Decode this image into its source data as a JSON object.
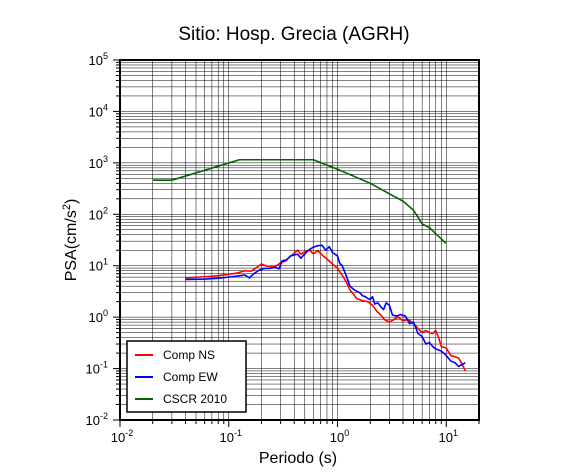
{
  "chart_data": {
    "type": "line",
    "title": "Sitio: Hosp. Grecia (AGRH)",
    "xlabel": "Periodo (s)",
    "ylabel": {
      "prefix": "PSA(cm/s",
      "sup": "2",
      "suffix": ")"
    },
    "xscale": "log",
    "yscale": "log",
    "xlim": [
      0.01,
      20
    ],
    "ylim": [
      0.01,
      100000
    ],
    "grid": true,
    "legend_position": "bottom-left",
    "x_ticks": [
      {
        "value": 0.01,
        "base": "10",
        "exp": "-2"
      },
      {
        "value": 0.1,
        "base": "10",
        "exp": "-1"
      },
      {
        "value": 1,
        "base": "10",
        "exp": "0"
      },
      {
        "value": 10,
        "base": "10",
        "exp": "1"
      }
    ],
    "y_ticks": [
      {
        "value": 0.01,
        "base": "10",
        "exp": "-2"
      },
      {
        "value": 0.1,
        "base": "10",
        "exp": "-1"
      },
      {
        "value": 1,
        "base": "10",
        "exp": "0"
      },
      {
        "value": 10,
        "base": "10",
        "exp": "1"
      },
      {
        "value": 100,
        "base": "10",
        "exp": "2"
      },
      {
        "value": 1000,
        "base": "10",
        "exp": "3"
      },
      {
        "value": 10000,
        "base": "10",
        "exp": "4"
      },
      {
        "value": 100000,
        "base": "10",
        "exp": "5"
      }
    ],
    "series": [
      {
        "name": "Comp NS",
        "color": "#ff0000",
        "points": [
          [
            0.04,
            5.8
          ],
          [
            0.06,
            6.1
          ],
          [
            0.08,
            6.4
          ],
          [
            0.1,
            6.8
          ],
          [
            0.12,
            7.2
          ],
          [
            0.14,
            8.0
          ],
          [
            0.16,
            7.8
          ],
          [
            0.18,
            9.2
          ],
          [
            0.2,
            10.8
          ],
          [
            0.22,
            9.9
          ],
          [
            0.25,
            9.6
          ],
          [
            0.28,
            10.2
          ],
          [
            0.3,
            11.5
          ],
          [
            0.33,
            12.2
          ],
          [
            0.36,
            14.5
          ],
          [
            0.4,
            17.5
          ],
          [
            0.43,
            20.0
          ],
          [
            0.46,
            16.8
          ],
          [
            0.5,
            18.5
          ],
          [
            0.55,
            20.2
          ],
          [
            0.6,
            17.0
          ],
          [
            0.66,
            19.6
          ],
          [
            0.72,
            16.2
          ],
          [
            0.8,
            13.5
          ],
          [
            0.9,
            10.8
          ],
          [
            1.0,
            8.9
          ],
          [
            1.1,
            6.6
          ],
          [
            1.2,
            4.9
          ],
          [
            1.3,
            3.4
          ],
          [
            1.4,
            2.8
          ],
          [
            1.5,
            2.3
          ],
          [
            1.7,
            2.1
          ],
          [
            1.9,
            2.0
          ],
          [
            2.1,
            1.7
          ],
          [
            2.3,
            1.3
          ],
          [
            2.5,
            1.1
          ],
          [
            2.7,
            0.9
          ],
          [
            3.0,
            0.8
          ],
          [
            3.3,
            0.9
          ],
          [
            3.6,
            1.0
          ],
          [
            4.0,
            0.85
          ],
          [
            4.5,
            0.9
          ],
          [
            5.0,
            0.75
          ],
          [
            5.5,
            0.6
          ],
          [
            6.0,
            0.5
          ],
          [
            6.5,
            0.55
          ],
          [
            7.0,
            0.5
          ],
          [
            7.5,
            0.48
          ],
          [
            8.0,
            0.55
          ],
          [
            8.5,
            0.4
          ],
          [
            9.0,
            0.27
          ],
          [
            10.0,
            0.25
          ],
          [
            11.0,
            0.18
          ],
          [
            12.0,
            0.17
          ],
          [
            13.0,
            0.16
          ],
          [
            14.0,
            0.12
          ],
          [
            15.0,
            0.09
          ]
        ]
      },
      {
        "name": "Comp EW",
        "color": "#0000ff",
        "points": [
          [
            0.04,
            5.4
          ],
          [
            0.06,
            5.5
          ],
          [
            0.08,
            5.7
          ],
          [
            0.1,
            6.0
          ],
          [
            0.12,
            6.3
          ],
          [
            0.14,
            6.6
          ],
          [
            0.155,
            5.8
          ],
          [
            0.17,
            7.0
          ],
          [
            0.19,
            8.2
          ],
          [
            0.21,
            8.8
          ],
          [
            0.24,
            8.9
          ],
          [
            0.27,
            9.3
          ],
          [
            0.29,
            8.7
          ],
          [
            0.31,
            12.5
          ],
          [
            0.34,
            13.0
          ],
          [
            0.37,
            15.5
          ],
          [
            0.4,
            16.2
          ],
          [
            0.43,
            16.8
          ],
          [
            0.46,
            14.0
          ],
          [
            0.5,
            17.0
          ],
          [
            0.55,
            20.5
          ],
          [
            0.6,
            23.0
          ],
          [
            0.66,
            24.5
          ],
          [
            0.72,
            25.0
          ],
          [
            0.78,
            20.0
          ],
          [
            0.84,
            23.5
          ],
          [
            0.9,
            18.0
          ],
          [
            1.0,
            15.5
          ],
          [
            1.05,
            11.0
          ],
          [
            1.1,
            10.2
          ],
          [
            1.2,
            6.5
          ],
          [
            1.3,
            4.0
          ],
          [
            1.4,
            3.5
          ],
          [
            1.5,
            3.2
          ],
          [
            1.6,
            3.0
          ],
          [
            1.7,
            2.6
          ],
          [
            1.8,
            2.5
          ],
          [
            1.9,
            2.3
          ],
          [
            2.0,
            2.2
          ],
          [
            2.1,
            2.5
          ],
          [
            2.2,
            1.8
          ],
          [
            2.35,
            1.9
          ],
          [
            2.5,
            1.6
          ],
          [
            2.65,
            1.4
          ],
          [
            2.8,
            1.9
          ],
          [
            3.0,
            1.7
          ],
          [
            3.2,
            1.1
          ],
          [
            3.5,
            1.05
          ],
          [
            3.8,
            1.12
          ],
          [
            4.2,
            1.05
          ],
          [
            4.6,
            0.75
          ],
          [
            5.0,
            0.8
          ],
          [
            5.5,
            0.48
          ],
          [
            6.0,
            0.42
          ],
          [
            6.5,
            0.3
          ],
          [
            7.0,
            0.32
          ],
          [
            7.5,
            0.27
          ],
          [
            8.0,
            0.24
          ],
          [
            9.0,
            0.22
          ],
          [
            10.0,
            0.18
          ],
          [
            11.0,
            0.14
          ],
          [
            12.0,
            0.13
          ],
          [
            13.0,
            0.11
          ],
          [
            14.0,
            0.12
          ],
          [
            15.0,
            0.13
          ]
        ]
      },
      {
        "name": "CSCR 2010",
        "color": "#006400",
        "points": [
          [
            0.02,
            460
          ],
          [
            0.03,
            460
          ],
          [
            0.125,
            1150
          ],
          [
            0.6,
            1150
          ],
          [
            1.0,
            750
          ],
          [
            2.0,
            400
          ],
          [
            4.0,
            180
          ],
          [
            5.0,
            120
          ],
          [
            6.0,
            65
          ],
          [
            7.0,
            55
          ],
          [
            8.0,
            42
          ],
          [
            10.0,
            27
          ]
        ]
      }
    ]
  }
}
